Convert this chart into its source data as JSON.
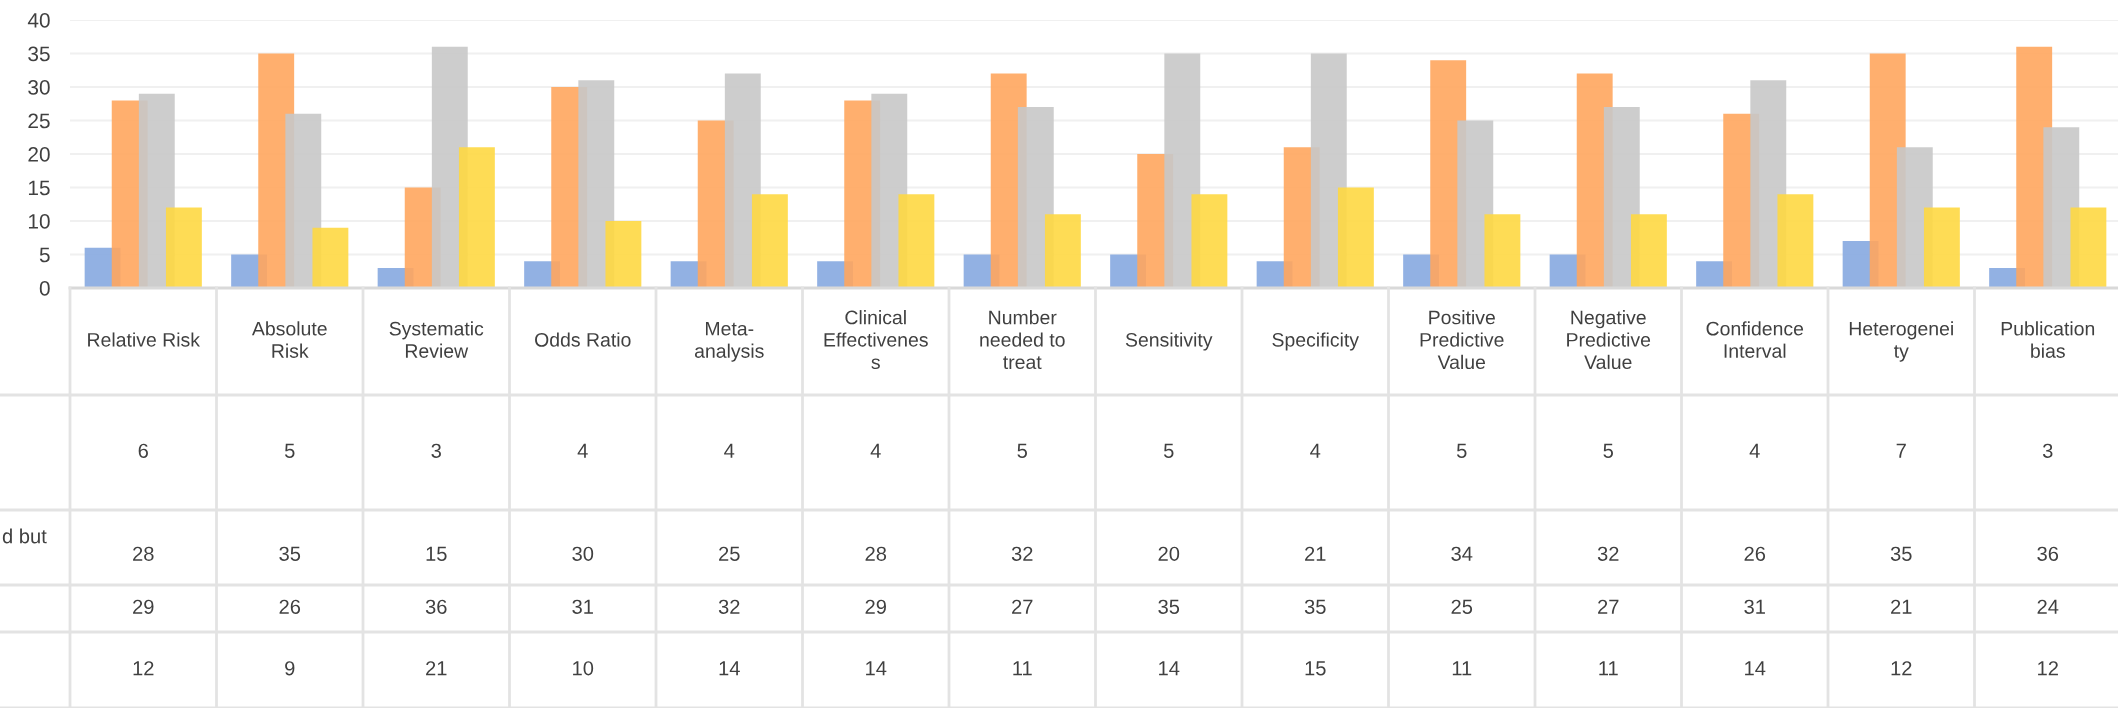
{
  "chart_data": {
    "type": "bar",
    "categories": [
      "Relative Risk",
      "Absolute\nRisk",
      "Systematic\nReview",
      "Odds Ratio",
      "Meta-\nanalysis",
      "Clinical\nEffectivenes\ns",
      "Number\nneeded to\ntreat",
      "Sensitivity",
      "Specificity",
      "Positive\nPredictive\nValue",
      "Negative\nPredictive\nValue",
      "Confidence\nInterval",
      "Heterogenei\nty",
      "Publication\nbias"
    ],
    "series": [
      {
        "color": "#86a8e0",
        "values": [
          6,
          5,
          3,
          4,
          4,
          4,
          5,
          5,
          4,
          5,
          5,
          4,
          7,
          3
        ]
      },
      {
        "color": "#ffa65e",
        "values": [
          28,
          35,
          15,
          30,
          25,
          28,
          32,
          20,
          21,
          34,
          32,
          26,
          35,
          36
        ]
      },
      {
        "color": "#c8c8c8",
        "values": [
          29,
          26,
          36,
          31,
          32,
          29,
          27,
          35,
          35,
          25,
          27,
          31,
          21,
          24
        ]
      },
      {
        "color": "#fed843",
        "values": [
          12,
          9,
          21,
          10,
          14,
          14,
          11,
          14,
          15,
          11,
          11,
          14,
          12,
          12
        ]
      }
    ],
    "ylim": [
      0,
      40
    ],
    "yticks": [
      0,
      5,
      10,
      15,
      20,
      25,
      30,
      35,
      40
    ],
    "grid": "y",
    "data_labels": true,
    "legend": false,
    "annotations": [
      "d but"
    ]
  }
}
